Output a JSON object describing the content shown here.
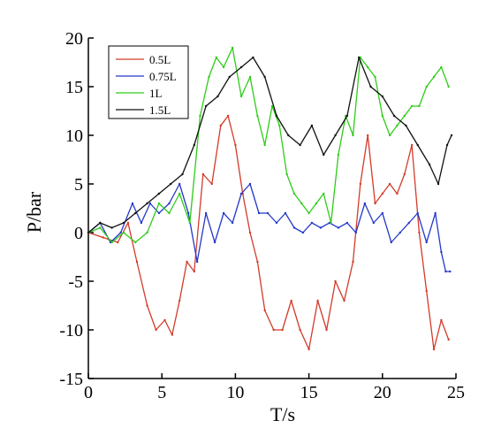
{
  "chart_data": {
    "type": "line",
    "xlabel": "T/s",
    "ylabel": "P/bar",
    "xlim": [
      0,
      25
    ],
    "ylim": [
      -15,
      20
    ],
    "xticks": [
      0,
      5,
      10,
      15,
      20,
      25
    ],
    "yticks": [
      -15,
      -10,
      -5,
      0,
      5,
      10,
      15,
      20
    ],
    "grid": false,
    "legend_position": "top-left",
    "series": [
      {
        "name": "0.5L",
        "color": "#d23b2a",
        "x": [
          0,
          1,
          2,
          2.7,
          3.3,
          4,
          4.6,
          5.2,
          5.7,
          6.2,
          6.7,
          7.2,
          7.8,
          8.4,
          9,
          9.5,
          10,
          10.5,
          11,
          11.5,
          12,
          12.6,
          13.2,
          13.8,
          14.4,
          15,
          15.6,
          16.2,
          16.8,
          17.4,
          18,
          18.5,
          19,
          19.5,
          20,
          20.5,
          21,
          21.5,
          22,
          22.5,
          23,
          23.5,
          24,
          24.5
        ],
        "y": [
          0,
          -0.5,
          -1,
          1,
          -3,
          -7.5,
          -10,
          -9,
          -10.5,
          -7,
          -3,
          -4,
          6,
          5,
          11,
          12,
          9,
          4,
          0,
          -3,
          -8,
          -10,
          -10,
          -7,
          -10,
          -12,
          -7,
          -10,
          -5,
          -7,
          -3,
          5,
          10,
          3,
          4,
          5,
          4,
          6,
          9,
          0,
          -6,
          -12,
          -9,
          -11
        ]
      },
      {
        "name": "0.75L",
        "color": "#2438c8",
        "x": [
          0,
          0.8,
          1.5,
          2.2,
          3,
          3.6,
          4.2,
          4.8,
          5.5,
          6.2,
          6.8,
          7.4,
          8,
          8.6,
          9.2,
          9.8,
          10.4,
          11,
          11.6,
          12.2,
          12.8,
          13.4,
          14,
          14.6,
          15.2,
          15.8,
          16.4,
          17,
          17.6,
          18.2,
          18.8,
          19.4,
          20,
          20.6,
          21.2,
          21.8,
          22.4,
          23,
          23.6,
          24,
          24.3,
          24.6
        ],
        "y": [
          0,
          1,
          -1,
          0,
          3,
          1,
          3,
          2,
          3,
          5,
          2,
          -3,
          2,
          -1,
          2,
          1,
          4,
          5,
          2,
          2,
          1,
          2,
          0.5,
          0,
          1,
          0.5,
          1,
          0.5,
          1,
          0,
          3,
          1,
          2,
          -1,
          0,
          1,
          2,
          -1,
          2,
          -2,
          -4,
          -4
        ]
      },
      {
        "name": "1L",
        "color": "#2ecc18",
        "x": [
          0,
          0.8,
          1.6,
          2.4,
          3.2,
          4,
          4.8,
          5.5,
          6.2,
          6.9,
          7.6,
          8.2,
          8.7,
          9.2,
          9.8,
          10.4,
          11,
          11.5,
          12,
          12.5,
          13,
          13.5,
          14,
          14.5,
          15,
          15.5,
          16,
          16.5,
          17,
          17.5,
          18,
          18.5,
          19,
          19.5,
          20,
          20.5,
          21,
          21.5,
          22,
          22.5,
          23,
          23.5,
          24,
          24.5
        ],
        "y": [
          0,
          0.5,
          -1,
          0,
          -1,
          0,
          3,
          2,
          4,
          1,
          12,
          16,
          18,
          17,
          19,
          14,
          16,
          12,
          9,
          13,
          11,
          6,
          4,
          3,
          2,
          3,
          4,
          1,
          8,
          12,
          10,
          18,
          17,
          16,
          12,
          10,
          11,
          12,
          13,
          13,
          15,
          16,
          17,
          15
        ]
      },
      {
        "name": "1.5L",
        "color": "#111111",
        "x": [
          0,
          0.8,
          1.6,
          2.4,
          3.2,
          4,
          4.8,
          5.6,
          6.4,
          7.2,
          8,
          8.8,
          9.6,
          10.4,
          11.2,
          12,
          12.8,
          13.6,
          14.4,
          15.2,
          16,
          16.8,
          17.6,
          18.4,
          19.2,
          20,
          20.8,
          21.6,
          22.4,
          23.2,
          23.8,
          24.4,
          24.7
        ],
        "y": [
          0,
          1,
          0.5,
          1,
          2,
          3,
          4,
          5,
          6,
          9,
          13,
          14,
          16,
          17,
          18,
          16,
          12,
          10,
          9,
          11,
          8,
          10,
          12,
          18,
          15,
          14,
          12,
          11,
          9,
          7,
          5,
          9,
          10
        ]
      }
    ]
  }
}
